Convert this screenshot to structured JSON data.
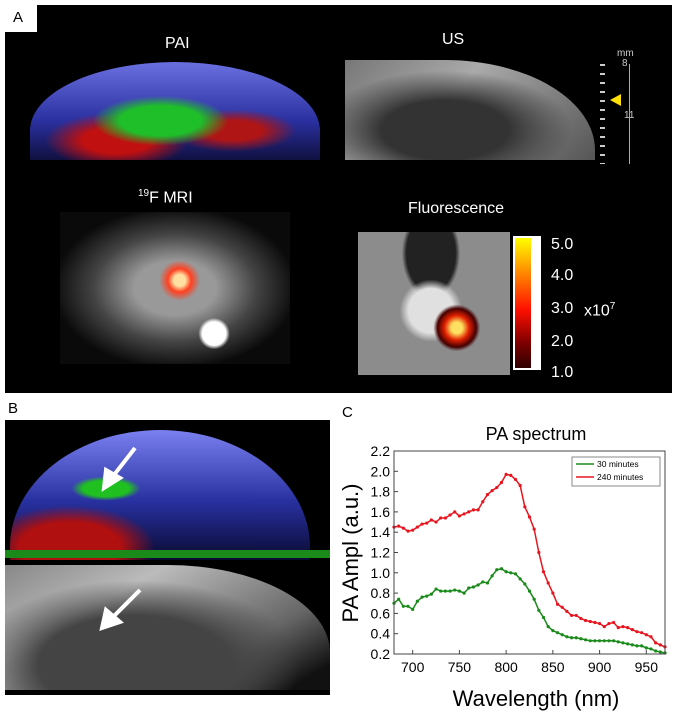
{
  "panel_a": {
    "label": "A",
    "pai_title": "PAI",
    "us_title": "US",
    "mri_title_sup": "19",
    "mri_title": "F MRI",
    "fluo_title": "Fluorescence",
    "scale_unit": "mm",
    "scale_top": "8",
    "scale_mid": "11",
    "colorbar_ticks": [
      "5.0",
      "4.0",
      "3.0",
      "2.0",
      "1.0"
    ],
    "colorbar_multiplier": "x10",
    "colorbar_exp": "7"
  },
  "panel_b": {
    "label": "B"
  },
  "panel_c": {
    "label": "C"
  },
  "chart_data": {
    "type": "line",
    "title": "PA spectrum",
    "xlabel": "Wavelength (nm)",
    "ylabel": "PA Ampl (a.u.)",
    "xlim": [
      680,
      970
    ],
    "ylim": [
      0.2,
      2.2
    ],
    "xticks": [
      "700",
      "750",
      "800",
      "850",
      "900",
      "950"
    ],
    "yticks": [
      "0.2",
      "0.4",
      "0.6",
      "0.8",
      "1.0",
      "1.2",
      "1.4",
      "1.6",
      "1.8",
      "2.0",
      "2.2"
    ],
    "legend_position": "top-right",
    "x": [
      680,
      685,
      690,
      695,
      700,
      705,
      710,
      715,
      720,
      725,
      730,
      735,
      740,
      745,
      750,
      755,
      760,
      765,
      770,
      775,
      780,
      785,
      790,
      795,
      800,
      805,
      810,
      815,
      820,
      825,
      830,
      835,
      840,
      845,
      850,
      855,
      860,
      865,
      870,
      875,
      880,
      885,
      890,
      895,
      900,
      905,
      910,
      915,
      920,
      925,
      930,
      935,
      940,
      945,
      950,
      955,
      960,
      965,
      970
    ],
    "series": [
      {
        "name": "30 minutes",
        "color": "#1a8a1a",
        "values": [
          0.7,
          0.74,
          0.67,
          0.67,
          0.64,
          0.72,
          0.76,
          0.77,
          0.79,
          0.84,
          0.82,
          0.82,
          0.82,
          0.83,
          0.82,
          0.8,
          0.85,
          0.86,
          0.88,
          0.91,
          0.9,
          0.97,
          1.03,
          1.04,
          1.01,
          1.0,
          0.99,
          0.94,
          0.89,
          0.82,
          0.74,
          0.63,
          0.56,
          0.47,
          0.43,
          0.41,
          0.39,
          0.37,
          0.36,
          0.36,
          0.35,
          0.34,
          0.33,
          0.33,
          0.33,
          0.33,
          0.33,
          0.33,
          0.32,
          0.31,
          0.3,
          0.29,
          0.28,
          0.28,
          0.26,
          0.25,
          0.23,
          0.22,
          0.21
        ]
      },
      {
        "name": "240 minutes",
        "color": "#e8141e",
        "values": [
          1.45,
          1.46,
          1.44,
          1.41,
          1.42,
          1.45,
          1.48,
          1.49,
          1.52,
          1.5,
          1.54,
          1.54,
          1.57,
          1.6,
          1.56,
          1.58,
          1.6,
          1.62,
          1.62,
          1.7,
          1.77,
          1.81,
          1.84,
          1.89,
          1.97,
          1.96,
          1.92,
          1.86,
          1.65,
          1.55,
          1.43,
          1.2,
          1.01,
          0.9,
          0.8,
          0.69,
          0.66,
          0.62,
          0.58,
          0.58,
          0.55,
          0.53,
          0.52,
          0.51,
          0.5,
          0.47,
          0.5,
          0.51,
          0.46,
          0.47,
          0.46,
          0.44,
          0.42,
          0.41,
          0.39,
          0.37,
          0.31,
          0.29,
          0.27
        ]
      }
    ]
  }
}
